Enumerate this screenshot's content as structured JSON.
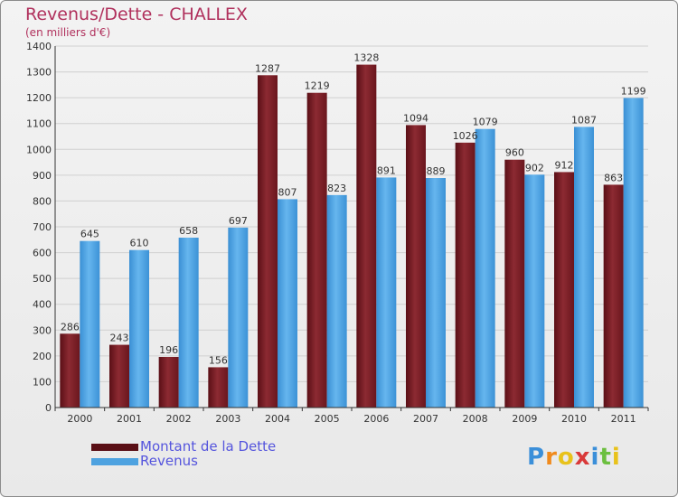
{
  "header": {
    "title": "Revenus/Dette - CHALLEX",
    "subtitle": "(en milliers d'€)"
  },
  "colors": {
    "dette": "#7a1f26",
    "revenus": "#4ea2e0",
    "title": "#b0305c",
    "grid": "#d0d0d0"
  },
  "chart_data": {
    "type": "bar",
    "title": "Revenus/Dette - CHALLEX",
    "ylabel": "(en milliers d'€)",
    "xlabel": "",
    "ylim": [
      0,
      1400
    ],
    "yticks": [
      0,
      100,
      200,
      300,
      400,
      500,
      600,
      700,
      800,
      900,
      1000,
      1100,
      1200,
      1300,
      1400
    ],
    "grid": true,
    "legend_position": "bottom-left",
    "categories": [
      "2000",
      "2001",
      "2002",
      "2003",
      "2004",
      "2005",
      "2006",
      "2007",
      "2008",
      "2009",
      "2010",
      "2011"
    ],
    "series": [
      {
        "name": "Montant de la Dette",
        "color": "#7a1f26",
        "values": [
          286,
          243,
          196,
          156,
          1287,
          1219,
          1328,
          1094,
          1026,
          960,
          912,
          863
        ]
      },
      {
        "name": "Revenus",
        "color": "#4ea2e0",
        "values": [
          645,
          610,
          658,
          697,
          807,
          823,
          891,
          889,
          1079,
          902,
          1087,
          1199
        ]
      }
    ]
  },
  "legend": {
    "items": [
      {
        "label": "Montant de la Dette"
      },
      {
        "label": "Revenus"
      }
    ]
  },
  "logo": {
    "letters": [
      "P",
      "r",
      "o",
      "x",
      "i",
      "t",
      "i"
    ],
    "letter_colors": [
      "#3b8fd9",
      "#f08a1c",
      "#e8c21b",
      "#d93a3a",
      "#3b8fd9",
      "#6cbf3f",
      "#e8c21b"
    ]
  }
}
